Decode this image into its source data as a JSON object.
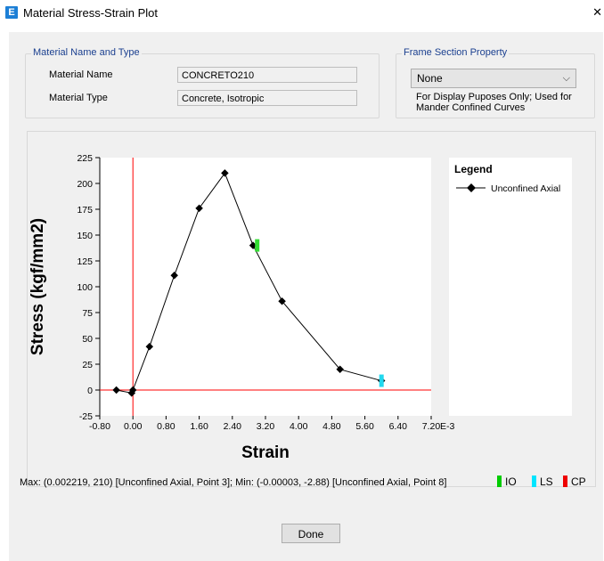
{
  "window": {
    "title": "Material Stress-Strain Plot",
    "close_glyph": "✕",
    "app_icon_letter": "E"
  },
  "material_group": {
    "legend": "Material Name and Type",
    "name_label": "Material Name",
    "name_value": "CONCRETO210",
    "type_label": "Material Type",
    "type_value": "Concrete, Isotropic"
  },
  "frame_group": {
    "legend": "Frame Section Property",
    "selected": "None",
    "note_line1": "For Display Puposes Only;  Used for",
    "note_line2": "Mander Confined Curves"
  },
  "chart_data": {
    "type": "line",
    "xlabel": "Strain",
    "ylabel": "Stress (kgf/mm2)",
    "x_unit_suffix": "E-3",
    "xlim": [
      -0.8,
      7.2
    ],
    "ylim": [
      -25,
      225
    ],
    "x_ticks": [
      "-0.80",
      "0.00",
      "0.80",
      "1.60",
      "2.40",
      "3.20",
      "4.00",
      "4.80",
      "5.60",
      "6.40",
      "7.20"
    ],
    "y_ticks": [
      "225",
      "200",
      "175",
      "150",
      "125",
      "100",
      "75",
      "50",
      "25",
      "0",
      "-25"
    ],
    "series": [
      {
        "name": "Unconfined Axial",
        "color": "#000000",
        "x": [
          -0.4,
          -0.03,
          0.0,
          0.4,
          1.0,
          1.6,
          2.219,
          2.9,
          3.6,
          5.0,
          6.0
        ],
        "y": [
          0,
          -2.88,
          0,
          42,
          111,
          176,
          210,
          140,
          86,
          20,
          9
        ]
      }
    ],
    "markers": [
      {
        "label": "IO",
        "color": "#33dd33",
        "x": 3.0,
        "y": 140
      },
      {
        "label": "LS",
        "color": "#22d8ee",
        "x": 6.0,
        "y": 9
      }
    ],
    "axis_color": "#ff0000",
    "legend_title": "Legend"
  },
  "status": {
    "text": "Max: (0.002219, 210)  [Unconfined Axial, Point 3];   Min: (-0.00003, -2.88)  [Unconfined Axial, Point 8]"
  },
  "keys": [
    {
      "label": "IO",
      "color": "#00cc00"
    },
    {
      "label": "LS",
      "color": "#00e5ff"
    },
    {
      "label": "CP",
      "color": "#ee0000"
    }
  ],
  "buttons": {
    "done": "Done"
  }
}
